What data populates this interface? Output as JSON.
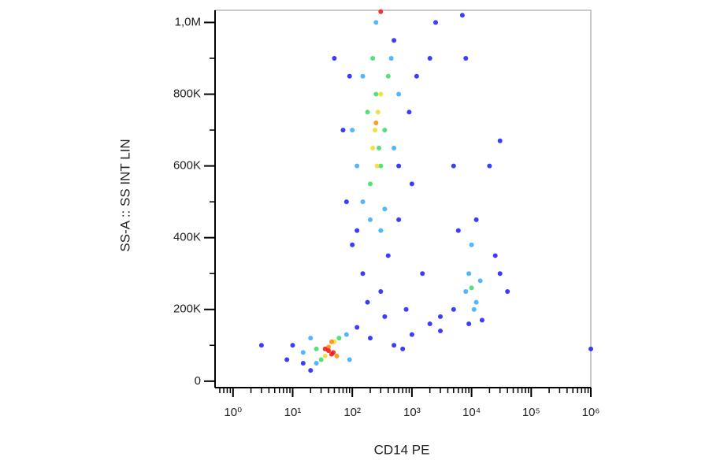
{
  "chart_data": {
    "type": "scatter",
    "x_label": "CD14 PE",
    "y_label": "SS-A :: SS INT LIN",
    "xscale": "log",
    "xlim": [
      0.5,
      1000000
    ],
    "ylim": [
      -18000,
      1034000
    ],
    "xticks": [
      {
        "value": 1,
        "label": "10⁰"
      },
      {
        "value": 10,
        "label": "10¹"
      },
      {
        "value": 100,
        "label": "10²"
      },
      {
        "value": 1000,
        "label": "10³"
      },
      {
        "value": 10000,
        "label": "10⁴"
      },
      {
        "value": 100000,
        "label": "10⁵"
      },
      {
        "value": 1000000,
        "label": "10⁶"
      }
    ],
    "xminorticks": [
      0.6,
      0.7,
      0.8,
      0.9,
      2,
      3,
      4,
      5,
      6,
      7,
      8,
      9,
      20,
      30,
      40,
      50,
      60,
      70,
      80,
      90,
      200,
      300,
      400,
      500,
      600,
      700,
      800,
      900,
      2000,
      3000,
      4000,
      5000,
      6000,
      7000,
      8000,
      9000,
      20000,
      30000,
      40000,
      50000,
      60000,
      70000,
      80000,
      90000,
      200000,
      300000,
      400000,
      500000,
      600000,
      700000,
      800000,
      900000
    ],
    "yticks": [
      0,
      {
        "value": 200000,
        "label": "200K"
      },
      {
        "value": 400000,
        "label": "400K"
      },
      {
        "value": 600000,
        "label": "600K"
      },
      {
        "value": 800000,
        "label": "800K"
      },
      {
        "value": 1000000,
        "label": "1,0M"
      }
    ],
    "yminorticks": [
      100000,
      300000,
      500000,
      700000,
      900000
    ],
    "series": [
      {
        "color": "#1a1aff",
        "x": [
          10,
          15,
          8,
          120,
          200,
          500,
          1000,
          2000,
          3000,
          5000,
          300,
          150,
          800,
          400,
          100,
          1500,
          600,
          900,
          1200,
          2000,
          50,
          80,
          70,
          30000,
          40000,
          25000,
          20000,
          6000,
          5000,
          30000,
          1000000,
          3,
          20,
          12000,
          15000,
          9000,
          3000,
          700,
          350,
          180,
          120,
          600,
          1000,
          90,
          500,
          2500,
          7000,
          8000
        ],
        "y": [
          100000,
          50000,
          60000,
          150000,
          120000,
          100000,
          130000,
          160000,
          180000,
          200000,
          250000,
          300000,
          200000,
          350000,
          380000,
          300000,
          600000,
          750000,
          850000,
          900000,
          900000,
          500000,
          700000,
          300000,
          250000,
          350000,
          600000,
          420000,
          600000,
          670000,
          90000,
          100000,
          30000,
          450000,
          170000,
          160000,
          140000,
          90000,
          180000,
          220000,
          420000,
          450000,
          550000,
          850000,
          950000,
          1000000,
          1020000,
          900000
        ]
      },
      {
        "color": "#33aaff",
        "x": [
          150,
          350,
          120,
          500,
          150,
          450,
          250,
          300,
          200,
          600,
          100,
          9000,
          12000,
          10000,
          8000,
          14000,
          11000,
          20,
          90,
          25,
          80,
          15
        ],
        "y": [
          500000,
          480000,
          600000,
          650000,
          850000,
          900000,
          1000000,
          420000,
          450000,
          800000,
          700000,
          300000,
          220000,
          380000,
          250000,
          280000,
          200000,
          120000,
          60000,
          50000,
          130000,
          80000
        ]
      },
      {
        "color": "#33dd66",
        "x": [
          200,
          300,
          250,
          180,
          350,
          220,
          280,
          400,
          60,
          25,
          30,
          10000
        ],
        "y": [
          550000,
          600000,
          800000,
          750000,
          700000,
          900000,
          650000,
          850000,
          120000,
          90000,
          60000,
          260000
        ]
      },
      {
        "color": "#eedd22",
        "x": [
          240,
          270,
          220,
          300,
          260,
          50,
          35
        ],
        "y": [
          700000,
          750000,
          650000,
          800000,
          600000,
          110000,
          70000
        ]
      },
      {
        "color": "#ff8800",
        "x": [
          250,
          40,
          55,
          45
        ],
        "y": [
          720000,
          95000,
          70000,
          110000
        ]
      },
      {
        "color": "#ee1111",
        "x": [
          40,
          48,
          35,
          45,
          300
        ],
        "y": [
          85000,
          80000,
          90000,
          75000,
          1030000
        ]
      }
    ]
  }
}
